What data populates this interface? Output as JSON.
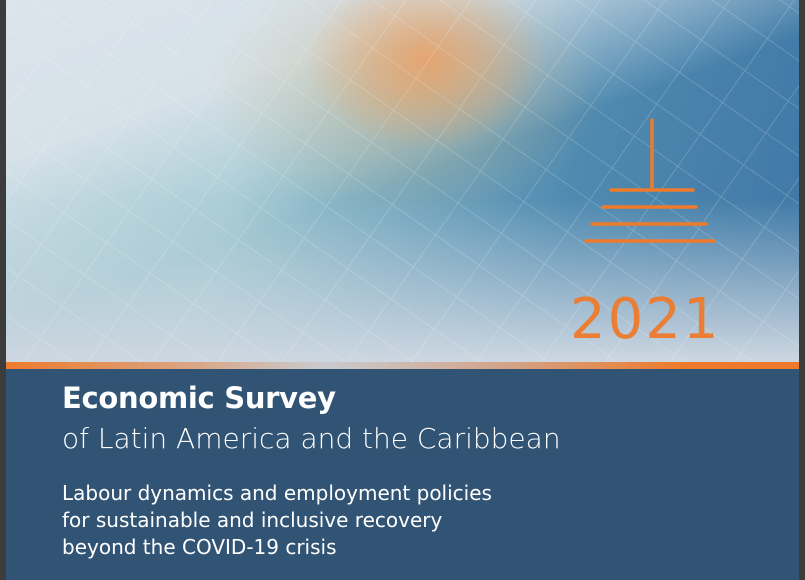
{
  "cover": {
    "year": "2021",
    "title": "Economic Survey",
    "title_line2": "of Latin America and the Caribbean",
    "subtitle": [
      "Labour dynamics and employment policies",
      "for sustainable and inclusive recovery",
      "beyond the COVID-19 crisis"
    ],
    "colors": {
      "accent": "#ee7b2c",
      "panel": "#315374"
    },
    "logo_icon": "eclac-logo-icon"
  }
}
